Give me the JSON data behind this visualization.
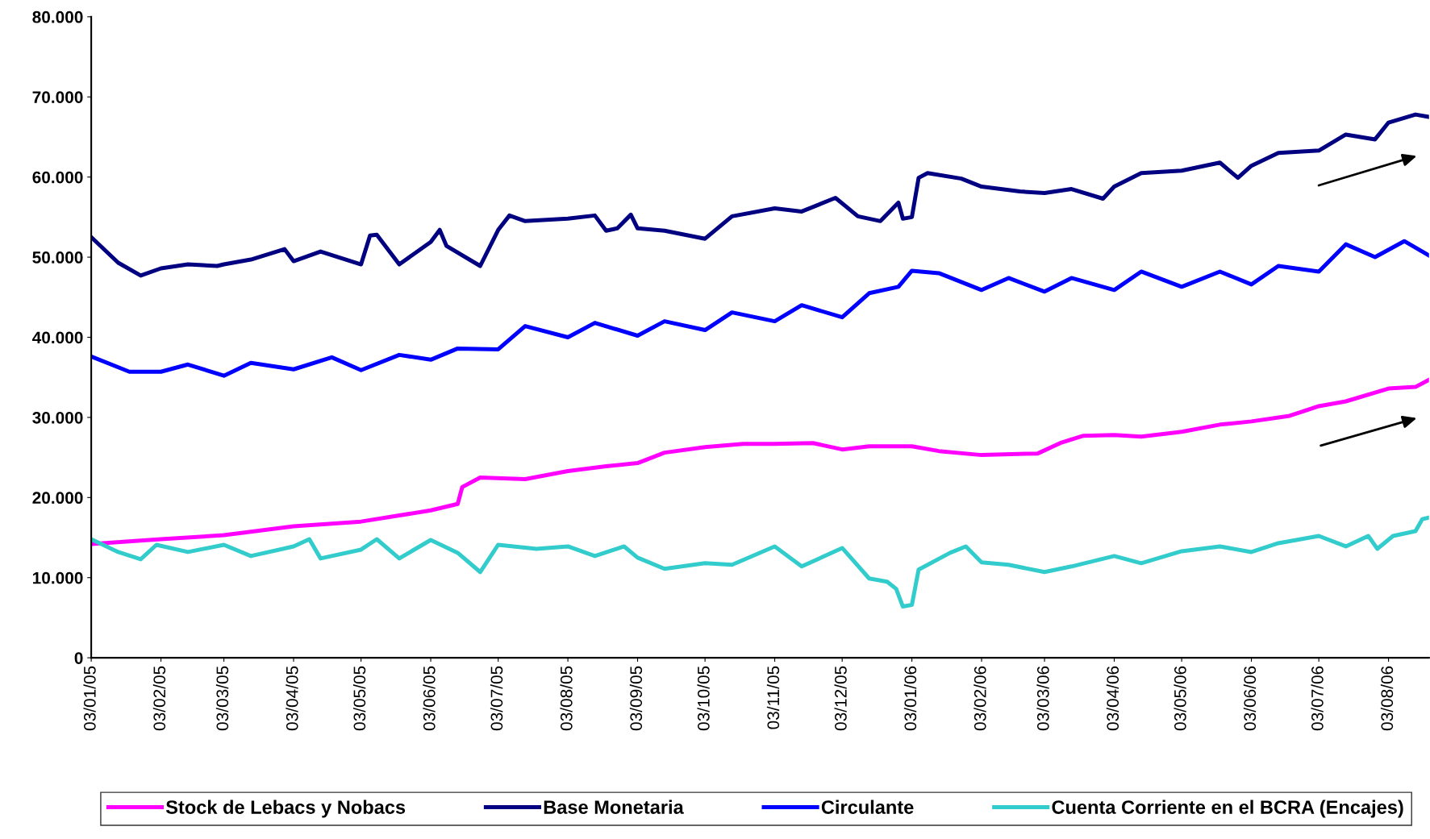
{
  "chart_data": {
    "type": "line",
    "xlim": [
      "2005-01-03",
      "2006-08-21"
    ],
    "ylim": [
      0,
      80000
    ],
    "yticks": [
      {
        "value": 0,
        "label": "0"
      },
      {
        "value": 10000,
        "label": "10.000"
      },
      {
        "value": 20000,
        "label": "20.000"
      },
      {
        "value": 30000,
        "label": "30.000"
      },
      {
        "value": 40000,
        "label": "40.000"
      },
      {
        "value": 50000,
        "label": "50.000"
      },
      {
        "value": 60000,
        "label": "60.000"
      },
      {
        "value": 70000,
        "label": "70.000"
      },
      {
        "value": 80000,
        "label": "80.000"
      }
    ],
    "xticks": [
      {
        "value": "2005-01-03",
        "label": "03/01/05"
      },
      {
        "value": "2005-02-03",
        "label": "03/02/05"
      },
      {
        "value": "2005-03-03",
        "label": "03/03/05"
      },
      {
        "value": "2005-04-03",
        "label": "03/04/05"
      },
      {
        "value": "2005-05-03",
        "label": "03/05/05"
      },
      {
        "value": "2005-06-03",
        "label": "03/06/05"
      },
      {
        "value": "2005-07-03",
        "label": "03/07/05"
      },
      {
        "value": "2005-08-03",
        "label": "03/08/05"
      },
      {
        "value": "2005-09-03",
        "label": "03/09/05"
      },
      {
        "value": "2005-10-03",
        "label": "03/10/05"
      },
      {
        "value": "2005-11-03",
        "label": "03/11/05"
      },
      {
        "value": "2005-12-03",
        "label": "03/12/05"
      },
      {
        "value": "2006-01-03",
        "label": "03/01/06"
      },
      {
        "value": "2006-02-03",
        "label": "03/02/06"
      },
      {
        "value": "2006-03-03",
        "label": "03/03/06"
      },
      {
        "value": "2006-04-03",
        "label": "03/04/06"
      },
      {
        "value": "2006-05-03",
        "label": "03/05/06"
      },
      {
        "value": "2006-06-03",
        "label": "03/06/06"
      },
      {
        "value": "2006-07-03",
        "label": "03/07/06"
      },
      {
        "value": "2006-08-03",
        "label": "03/08/06"
      }
    ],
    "grid": false,
    "legend": "bottom",
    "marker": "none",
    "line_style": "solid",
    "series": [
      {
        "name": "Stock de Lebacs y Nobacs",
        "color": "#ff00ff",
        "x": [
          "2005-01-03",
          "2005-02-03",
          "2005-03-03",
          "2005-04-03",
          "2005-05-03",
          "2005-06-03",
          "2005-06-15",
          "2005-06-17",
          "2005-06-25",
          "2005-07-15",
          "2005-08-03",
          "2005-08-20",
          "2005-09-03",
          "2005-09-15",
          "2005-10-03",
          "2005-10-20",
          "2005-11-03",
          "2005-11-20",
          "2005-12-03",
          "2005-12-15",
          "2006-01-03",
          "2006-01-15",
          "2006-02-03",
          "2006-02-28",
          "2006-03-10",
          "2006-03-20",
          "2006-04-03",
          "2006-04-15",
          "2006-05-03",
          "2006-05-20",
          "2006-06-03",
          "2006-06-20",
          "2006-07-03",
          "2006-07-15",
          "2006-08-03",
          "2006-08-15",
          "2006-08-21"
        ],
        "values": [
          14200,
          14800,
          15300,
          16400,
          17000,
          18400,
          19200,
          21300,
          22500,
          22300,
          23300,
          23900,
          24300,
          25600,
          26300,
          26700,
          26700,
          26800,
          26000,
          26400,
          26400,
          25800,
          25300,
          25500,
          26800,
          27700,
          27800,
          27600,
          28200,
          29100,
          29500,
          30200,
          31400,
          32000,
          33600,
          33800,
          34700
        ]
      },
      {
        "name": "Base Monetaria",
        "color": "#000080",
        "x": [
          "2005-01-03",
          "2005-01-15",
          "2005-01-25",
          "2005-02-03",
          "2005-02-15",
          "2005-02-28",
          "2005-03-03",
          "2005-03-15",
          "2005-03-30",
          "2005-04-03",
          "2005-04-15",
          "2005-05-03",
          "2005-05-07",
          "2005-05-10",
          "2005-05-20",
          "2005-06-03",
          "2005-06-07",
          "2005-06-10",
          "2005-06-25",
          "2005-07-03",
          "2005-07-08",
          "2005-07-15",
          "2005-08-03",
          "2005-08-15",
          "2005-08-20",
          "2005-08-25",
          "2005-08-31",
          "2005-09-03",
          "2005-09-15",
          "2005-10-03",
          "2005-10-15",
          "2005-11-03",
          "2005-11-15",
          "2005-11-30",
          "2005-12-10",
          "2005-12-20",
          "2005-12-28",
          "2005-12-30",
          "2006-01-03",
          "2006-01-06",
          "2006-01-10",
          "2006-01-25",
          "2006-02-03",
          "2006-02-20",
          "2006-03-03",
          "2006-03-15",
          "2006-03-29",
          "2006-04-03",
          "2006-04-15",
          "2006-05-03",
          "2006-05-20",
          "2006-05-28",
          "2006-06-03",
          "2006-06-15",
          "2006-07-03",
          "2006-07-15",
          "2006-07-28",
          "2006-08-03",
          "2006-08-15",
          "2006-08-21"
        ],
        "values": [
          52500,
          49300,
          47700,
          48600,
          49100,
          48900,
          49100,
          49700,
          51000,
          49500,
          50700,
          49100,
          52700,
          52800,
          49100,
          51900,
          53400,
          51400,
          48900,
          53400,
          55200,
          54500,
          54800,
          55200,
          53300,
          53600,
          55300,
          53600,
          53300,
          52300,
          55100,
          56100,
          55700,
          57400,
          55100,
          54500,
          56800,
          54800,
          55000,
          59900,
          60500,
          59800,
          58800,
          58200,
          58000,
          58500,
          57300,
          58800,
          60500,
          60800,
          61800,
          59900,
          61400,
          63000,
          63300,
          65300,
          64700,
          66800,
          67800,
          67500
        ]
      },
      {
        "name": "Circulante",
        "color": "#0000ff",
        "x": [
          "2005-01-03",
          "2005-01-20",
          "2005-02-03",
          "2005-02-15",
          "2005-03-03",
          "2005-03-15",
          "2005-04-03",
          "2005-04-20",
          "2005-05-03",
          "2005-05-20",
          "2005-06-03",
          "2005-06-15",
          "2005-07-03",
          "2005-07-15",
          "2005-08-03",
          "2005-08-15",
          "2005-09-03",
          "2005-09-15",
          "2005-10-03",
          "2005-10-15",
          "2005-11-03",
          "2005-11-15",
          "2005-12-03",
          "2005-12-15",
          "2005-12-28",
          "2006-01-03",
          "2006-01-15",
          "2006-02-03",
          "2006-02-15",
          "2006-03-03",
          "2006-03-15",
          "2006-04-03",
          "2006-04-15",
          "2006-05-03",
          "2006-05-20",
          "2006-06-03",
          "2006-06-15",
          "2006-07-03",
          "2006-07-15",
          "2006-07-28",
          "2006-08-10",
          "2006-08-21"
        ],
        "values": [
          37600,
          35700,
          35700,
          36600,
          35200,
          36800,
          36000,
          37500,
          35900,
          37800,
          37200,
          38600,
          38500,
          41400,
          40000,
          41800,
          40200,
          42000,
          40900,
          43100,
          42000,
          44000,
          42500,
          45500,
          46300,
          48300,
          48000,
          45900,
          47400,
          45700,
          47400,
          45900,
          48200,
          46300,
          48200,
          46600,
          48900,
          48200,
          51600,
          50000,
          52000,
          50200
        ]
      },
      {
        "name": "Cuenta Corriente en el BCRA (Encajes)",
        "color": "#33cccc",
        "x": [
          "2005-01-03",
          "2005-01-15",
          "2005-01-25",
          "2005-02-01",
          "2005-02-15",
          "2005-03-03",
          "2005-03-15",
          "2005-04-03",
          "2005-04-10",
          "2005-04-15",
          "2005-05-03",
          "2005-05-10",
          "2005-05-20",
          "2005-06-03",
          "2005-06-15",
          "2005-06-25",
          "2005-07-03",
          "2005-07-20",
          "2005-08-03",
          "2005-08-15",
          "2005-08-28",
          "2005-09-03",
          "2005-09-15",
          "2005-10-03",
          "2005-10-15",
          "2005-11-03",
          "2005-11-15",
          "2005-12-03",
          "2005-12-15",
          "2005-12-23",
          "2005-12-27",
          "2005-12-30",
          "2006-01-03",
          "2006-01-06",
          "2006-01-20",
          "2006-01-27",
          "2006-02-03",
          "2006-02-15",
          "2006-03-03",
          "2006-03-15",
          "2006-04-03",
          "2006-04-15",
          "2006-05-03",
          "2006-05-20",
          "2006-06-03",
          "2006-06-15",
          "2006-07-03",
          "2006-07-15",
          "2006-07-25",
          "2006-07-29",
          "2006-08-05",
          "2006-08-15",
          "2006-08-18",
          "2006-08-21"
        ],
        "values": [
          14800,
          13200,
          12300,
          14100,
          13200,
          14100,
          12700,
          13900,
          14800,
          12400,
          13500,
          14800,
          12400,
          14700,
          13100,
          10700,
          14100,
          13600,
          13900,
          12700,
          13900,
          12500,
          11100,
          11800,
          11600,
          13900,
          11400,
          13700,
          9900,
          9500,
          8600,
          6400,
          6600,
          11000,
          13100,
          13900,
          11900,
          11600,
          10700,
          11400,
          12700,
          11800,
          13300,
          13900,
          13200,
          14300,
          15200,
          13900,
          15200,
          13600,
          15200,
          15800,
          17300,
          17500
        ]
      }
    ]
  }
}
